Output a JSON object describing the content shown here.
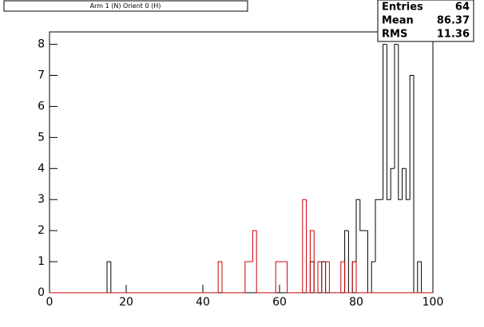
{
  "chart_data": {
    "type": "histogram",
    "title": "Arm 1 (N) Orient 0 (H)",
    "stats": {
      "labels": [
        "Entries",
        "Mean",
        "RMS"
      ],
      "values": [
        64,
        86.37,
        11.36
      ]
    },
    "bins": [
      0,
      1,
      2,
      3,
      4,
      5,
      6,
      7,
      8,
      9,
      10,
      11,
      12,
      13,
      14,
      15,
      16,
      17,
      18,
      19,
      20,
      21,
      22,
      23,
      24,
      25,
      26,
      27,
      28,
      29,
      30,
      31,
      32,
      33,
      34,
      35,
      36,
      37,
      38,
      39,
      40,
      41,
      42,
      43,
      44,
      45,
      46,
      47,
      48,
      49,
      50,
      51,
      52,
      53,
      54,
      55,
      56,
      57,
      58,
      59,
      60,
      61,
      62,
      63,
      64,
      65,
      66,
      67,
      68,
      69,
      70,
      71,
      72,
      73,
      74,
      75,
      76,
      77,
      78,
      79,
      80,
      81,
      82,
      83,
      84,
      85,
      86,
      87,
      88,
      89,
      90,
      91,
      92,
      93,
      94,
      95,
      96,
      97,
      98,
      99,
      100
    ],
    "series": [
      {
        "color": "#000000",
        "values": [
          0,
          0,
          0,
          0,
          0,
          0,
          0,
          0,
          0,
          0,
          0,
          0,
          0,
          0,
          0,
          1,
          0,
          0,
          0,
          0,
          0,
          0,
          0,
          0,
          0,
          0,
          0,
          0,
          0,
          0,
          0,
          0,
          0,
          0,
          0,
          0,
          0,
          0,
          0,
          0,
          0,
          0,
          0,
          0,
          0,
          0,
          0,
          0,
          0,
          0,
          0,
          0,
          0,
          0,
          0,
          0,
          0,
          0,
          0,
          0,
          0,
          0,
          0,
          0,
          0,
          0,
          0,
          0,
          1,
          0,
          0,
          1,
          0,
          0,
          0,
          0,
          0,
          2,
          0,
          1,
          3,
          2,
          2,
          0,
          1,
          3,
          3,
          8,
          3,
          4,
          8,
          3,
          4,
          3,
          7,
          0,
          1,
          0,
          0,
          0
        ]
      },
      {
        "color": "#cc0000",
        "values": [
          0,
          0,
          0,
          0,
          0,
          0,
          0,
          0,
          0,
          0,
          0,
          0,
          0,
          0,
          0,
          0,
          0,
          0,
          0,
          0,
          0,
          0,
          0,
          0,
          0,
          0,
          0,
          0,
          0,
          0,
          0,
          0,
          0,
          0,
          0,
          0,
          0,
          0,
          0,
          0,
          0,
          0,
          0,
          0,
          1,
          0,
          0,
          0,
          0,
          0,
          0,
          1,
          1,
          2,
          0,
          0,
          0,
          0,
          0,
          1,
          1,
          1,
          0,
          0,
          0,
          0,
          3,
          0,
          2,
          0,
          1,
          0,
          1,
          0,
          0,
          0,
          1,
          0,
          0,
          1,
          0,
          0,
          0,
          0,
          0,
          0,
          0,
          0,
          0,
          0,
          0,
          0,
          0,
          0,
          0,
          0,
          0,
          0,
          0,
          0
        ]
      }
    ],
    "xlim": [
      0,
      100
    ],
    "xticks": [
      0,
      20,
      40,
      60,
      80,
      100
    ],
    "ylim": [
      0,
      8.4
    ],
    "yticks": [
      0,
      1,
      2,
      3,
      4,
      5,
      6,
      7,
      8
    ]
  }
}
